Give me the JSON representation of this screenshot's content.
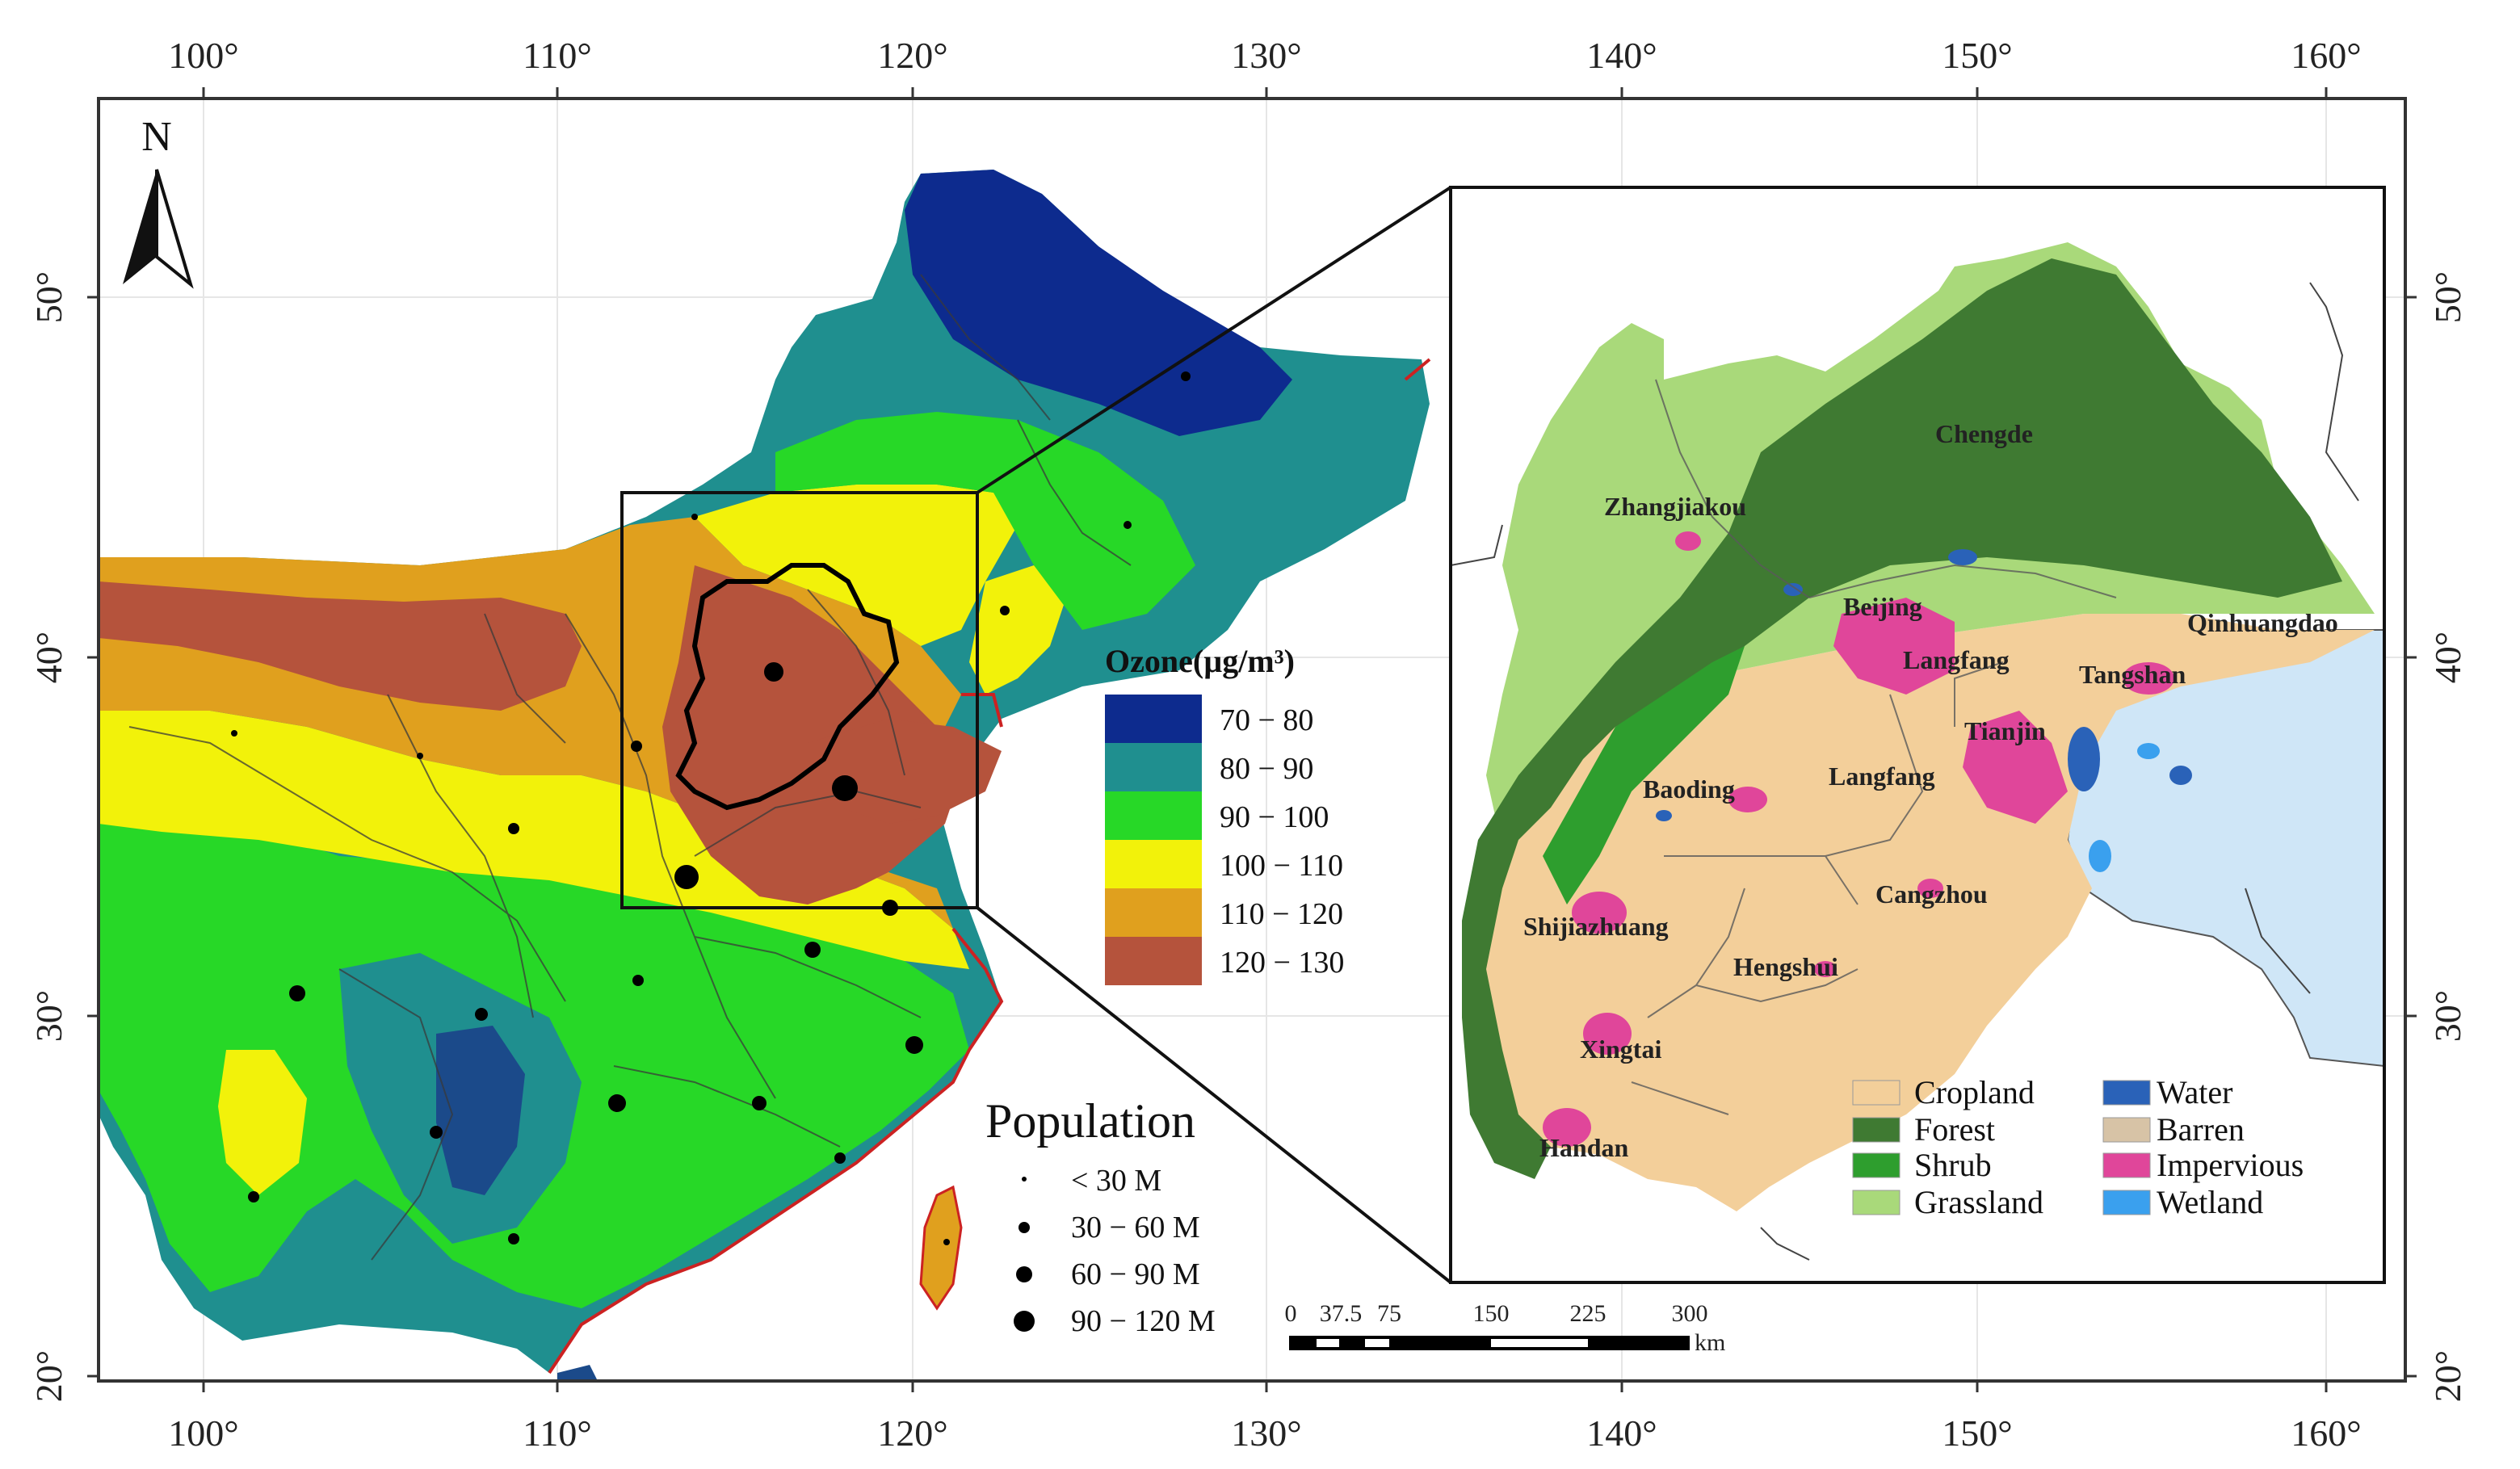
{
  "map": {
    "north_label": "N",
    "axes": {
      "lon_ticks": [
        "100°",
        "110°",
        "120°",
        "130°",
        "140°",
        "150°",
        "160°"
      ],
      "lat_ticks": [
        "50°",
        "40°",
        "30°",
        "20°"
      ]
    },
    "ozone_legend": {
      "title": "Ozone(µg/m³)",
      "classes": [
        {
          "label": "70 − 80",
          "color": "#0d2b8e"
        },
        {
          "label": "80 − 90",
          "color": "#1f8f8f"
        },
        {
          "label": "90 − 100",
          "color": "#27d827"
        },
        {
          "label": "100 − 110",
          "color": "#f2f20a"
        },
        {
          "label": "110 − 120",
          "color": "#e0a01e"
        },
        {
          "label": "120 − 130",
          "color": "#b5533c"
        }
      ]
    },
    "population_legend": {
      "title": "Population",
      "classes": [
        "< 30 M",
        "30 − 60 M",
        "60 − 90 M",
        "90 − 120 M"
      ]
    },
    "landcover_legend": {
      "classes": [
        {
          "label": "Cropland",
          "color": "#f3cf9a"
        },
        {
          "label": "Forest",
          "color": "#3f7a32"
        },
        {
          "label": "Shrub",
          "color": "#2e9e2e"
        },
        {
          "label": "Grassland",
          "color": "#a9d97a"
        },
        {
          "label": "Water",
          "color": "#2a62b8"
        },
        {
          "label": "Barren",
          "color": "#d7c3a6"
        },
        {
          "label": "Impervious",
          "color": "#e0469a"
        },
        {
          "label": "Wetland",
          "color": "#3aa0ee"
        }
      ]
    },
    "cities": [
      "Chengde",
      "Zhangjiakou",
      "Beijing",
      "Qinhuangdao",
      "Langfang",
      "Tangshan",
      "Tianjin",
      "Baoding",
      "Langfang",
      "Cangzhou",
      "Shijiazhuang",
      "Hengshui",
      "Xingtai",
      "Handan"
    ],
    "scale_bar": {
      "ticks": [
        "0",
        "37.5",
        "75",
        "150",
        "225",
        "300"
      ],
      "unit": "km"
    }
  }
}
